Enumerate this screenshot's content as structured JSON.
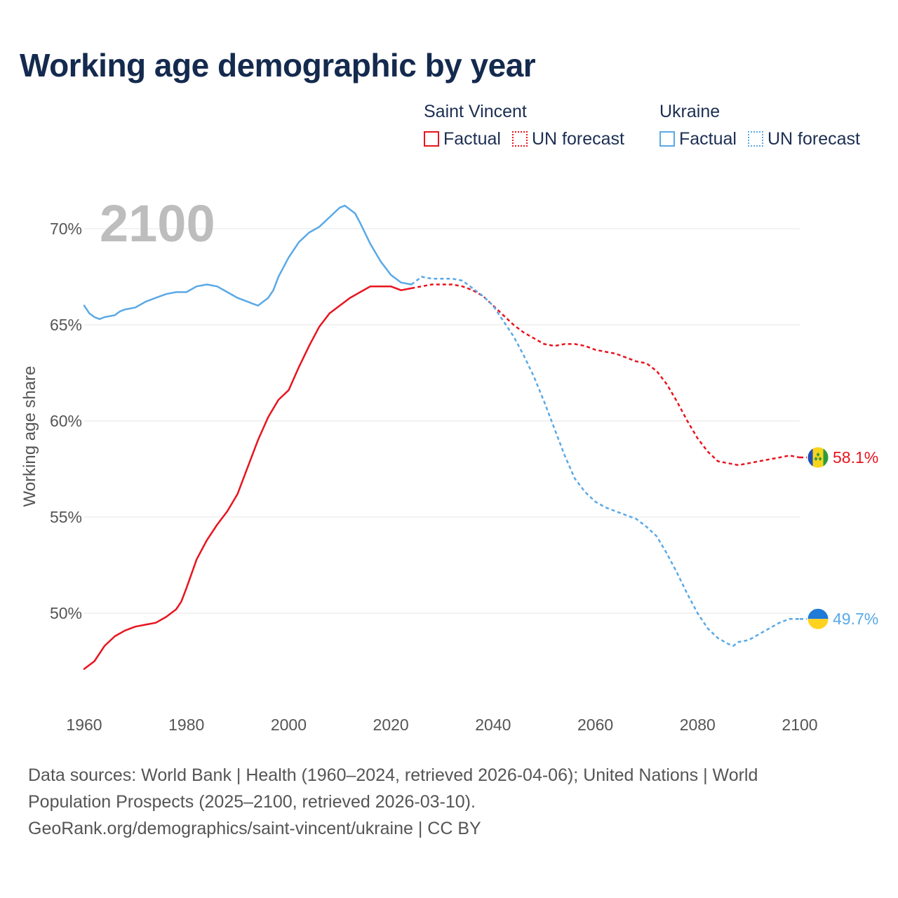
{
  "title": "Working age demographic by year",
  "legend": {
    "groups": [
      {
        "name": "Saint Vincent",
        "color": "#e8141e",
        "factual_label": "Factual",
        "forecast_label": "UN forecast"
      },
      {
        "name": "Ukraine",
        "color": "#5aa9e6",
        "factual_label": "Factual",
        "forecast_label": "UN forecast"
      }
    ]
  },
  "year_watermark": "2100",
  "footer": {
    "line1": "Data sources: World Bank | Health (1960–2024, retrieved 2026-04-06); United Nations | World",
    "line2": "Population Prospects (2025–2100, retrieved 2026-03-10).",
    "line3": "GeoRank.org/demographics/saint-vincent/ukraine | CC BY"
  },
  "chart_data": {
    "type": "line",
    "title": "Working age demographic by year",
    "xlabel": "",
    "ylabel": "Working age share",
    "xlim": [
      1960,
      2100
    ],
    "ylim": [
      45,
      72
    ],
    "x_ticks": [
      1960,
      1980,
      2000,
      2020,
      2040,
      2060,
      2080,
      2100
    ],
    "x_tick_labels": [
      "1960",
      "1980",
      "2000",
      "2020",
      "2040",
      "2060",
      "2080",
      "2100"
    ],
    "y_ticks": [
      50,
      55,
      60,
      65,
      70
    ],
    "y_tick_labels": [
      "50%",
      "55%",
      "60%",
      "65%",
      "70%"
    ],
    "grid": true,
    "factual_end_year": 2024,
    "series": [
      {
        "name": "Saint Vincent",
        "color": "#e8141e",
        "end_label": "58.1%",
        "flag": "saint-vincent",
        "points": [
          [
            1960,
            47.1
          ],
          [
            1962,
            47.5
          ],
          [
            1964,
            48.3
          ],
          [
            1966,
            48.8
          ],
          [
            1968,
            49.1
          ],
          [
            1970,
            49.3
          ],
          [
            1972,
            49.4
          ],
          [
            1974,
            49.5
          ],
          [
            1976,
            49.8
          ],
          [
            1978,
            50.2
          ],
          [
            1979,
            50.6
          ],
          [
            1980,
            51.3
          ],
          [
            1982,
            52.8
          ],
          [
            1984,
            53.8
          ],
          [
            1986,
            54.6
          ],
          [
            1988,
            55.3
          ],
          [
            1990,
            56.2
          ],
          [
            1992,
            57.6
          ],
          [
            1994,
            59.0
          ],
          [
            1996,
            60.2
          ],
          [
            1998,
            61.1
          ],
          [
            2000,
            61.6
          ],
          [
            2002,
            62.8
          ],
          [
            2004,
            63.9
          ],
          [
            2006,
            64.9
          ],
          [
            2008,
            65.6
          ],
          [
            2010,
            66.0
          ],
          [
            2012,
            66.4
          ],
          [
            2014,
            66.7
          ],
          [
            2016,
            67.0
          ],
          [
            2018,
            67.0
          ],
          [
            2020,
            67.0
          ],
          [
            2022,
            66.8
          ],
          [
            2024,
            66.9
          ],
          [
            2026,
            67.0
          ],
          [
            2028,
            67.1
          ],
          [
            2030,
            67.1
          ],
          [
            2032,
            67.1
          ],
          [
            2034,
            67.0
          ],
          [
            2036,
            66.8
          ],
          [
            2038,
            66.5
          ],
          [
            2040,
            66.0
          ],
          [
            2042,
            65.5
          ],
          [
            2044,
            65.0
          ],
          [
            2046,
            64.6
          ],
          [
            2048,
            64.3
          ],
          [
            2050,
            64.0
          ],
          [
            2052,
            63.9
          ],
          [
            2054,
            64.0
          ],
          [
            2056,
            64.0
          ],
          [
            2058,
            63.9
          ],
          [
            2060,
            63.7
          ],
          [
            2062,
            63.6
          ],
          [
            2064,
            63.5
          ],
          [
            2066,
            63.3
          ],
          [
            2068,
            63.1
          ],
          [
            2070,
            63.0
          ],
          [
            2072,
            62.6
          ],
          [
            2074,
            61.9
          ],
          [
            2076,
            61.0
          ],
          [
            2078,
            60.0
          ],
          [
            2080,
            59.1
          ],
          [
            2082,
            58.4
          ],
          [
            2084,
            57.9
          ],
          [
            2086,
            57.8
          ],
          [
            2088,
            57.7
          ],
          [
            2090,
            57.8
          ],
          [
            2092,
            57.9
          ],
          [
            2094,
            58.0
          ],
          [
            2096,
            58.1
          ],
          [
            2098,
            58.2
          ],
          [
            2100,
            58.1
          ]
        ]
      },
      {
        "name": "Ukraine",
        "color": "#5aa9e6",
        "end_label": "49.7%",
        "flag": "ukraine",
        "points": [
          [
            1960,
            66.0
          ],
          [
            1961,
            65.6
          ],
          [
            1962,
            65.4
          ],
          [
            1963,
            65.3
          ],
          [
            1964,
            65.4
          ],
          [
            1966,
            65.5
          ],
          [
            1967,
            65.7
          ],
          [
            1968,
            65.8
          ],
          [
            1970,
            65.9
          ],
          [
            1972,
            66.2
          ],
          [
            1974,
            66.4
          ],
          [
            1976,
            66.6
          ],
          [
            1978,
            66.7
          ],
          [
            1980,
            66.7
          ],
          [
            1982,
            67.0
          ],
          [
            1984,
            67.1
          ],
          [
            1986,
            67.0
          ],
          [
            1988,
            66.7
          ],
          [
            1990,
            66.4
          ],
          [
            1992,
            66.2
          ],
          [
            1993,
            66.1
          ],
          [
            1994,
            66.0
          ],
          [
            1996,
            66.4
          ],
          [
            1997,
            66.8
          ],
          [
            1998,
            67.5
          ],
          [
            2000,
            68.5
          ],
          [
            2002,
            69.3
          ],
          [
            2004,
            69.8
          ],
          [
            2006,
            70.1
          ],
          [
            2008,
            70.6
          ],
          [
            2010,
            71.1
          ],
          [
            2011,
            71.2
          ],
          [
            2013,
            70.8
          ],
          [
            2014,
            70.3
          ],
          [
            2016,
            69.2
          ],
          [
            2018,
            68.3
          ],
          [
            2020,
            67.6
          ],
          [
            2022,
            67.2
          ],
          [
            2024,
            67.1
          ],
          [
            2026,
            67.5
          ],
          [
            2028,
            67.4
          ],
          [
            2030,
            67.4
          ],
          [
            2032,
            67.4
          ],
          [
            2034,
            67.3
          ],
          [
            2036,
            66.9
          ],
          [
            2038,
            66.5
          ],
          [
            2040,
            66.0
          ],
          [
            2042,
            65.2
          ],
          [
            2044,
            64.4
          ],
          [
            2046,
            63.4
          ],
          [
            2048,
            62.3
          ],
          [
            2050,
            61.0
          ],
          [
            2052,
            59.6
          ],
          [
            2054,
            58.2
          ],
          [
            2056,
            57.0
          ],
          [
            2058,
            56.3
          ],
          [
            2060,
            55.8
          ],
          [
            2062,
            55.5
          ],
          [
            2064,
            55.3
          ],
          [
            2066,
            55.1
          ],
          [
            2068,
            54.9
          ],
          [
            2070,
            54.5
          ],
          [
            2072,
            54.0
          ],
          [
            2074,
            53.1
          ],
          [
            2076,
            52.1
          ],
          [
            2078,
            51.0
          ],
          [
            2080,
            50.0
          ],
          [
            2082,
            49.2
          ],
          [
            2084,
            48.7
          ],
          [
            2086,
            48.4
          ],
          [
            2087,
            48.3
          ],
          [
            2088,
            48.5
          ],
          [
            2090,
            48.6
          ],
          [
            2092,
            48.9
          ],
          [
            2094,
            49.2
          ],
          [
            2096,
            49.5
          ],
          [
            2098,
            49.7
          ],
          [
            2100,
            49.7
          ]
        ]
      }
    ]
  }
}
